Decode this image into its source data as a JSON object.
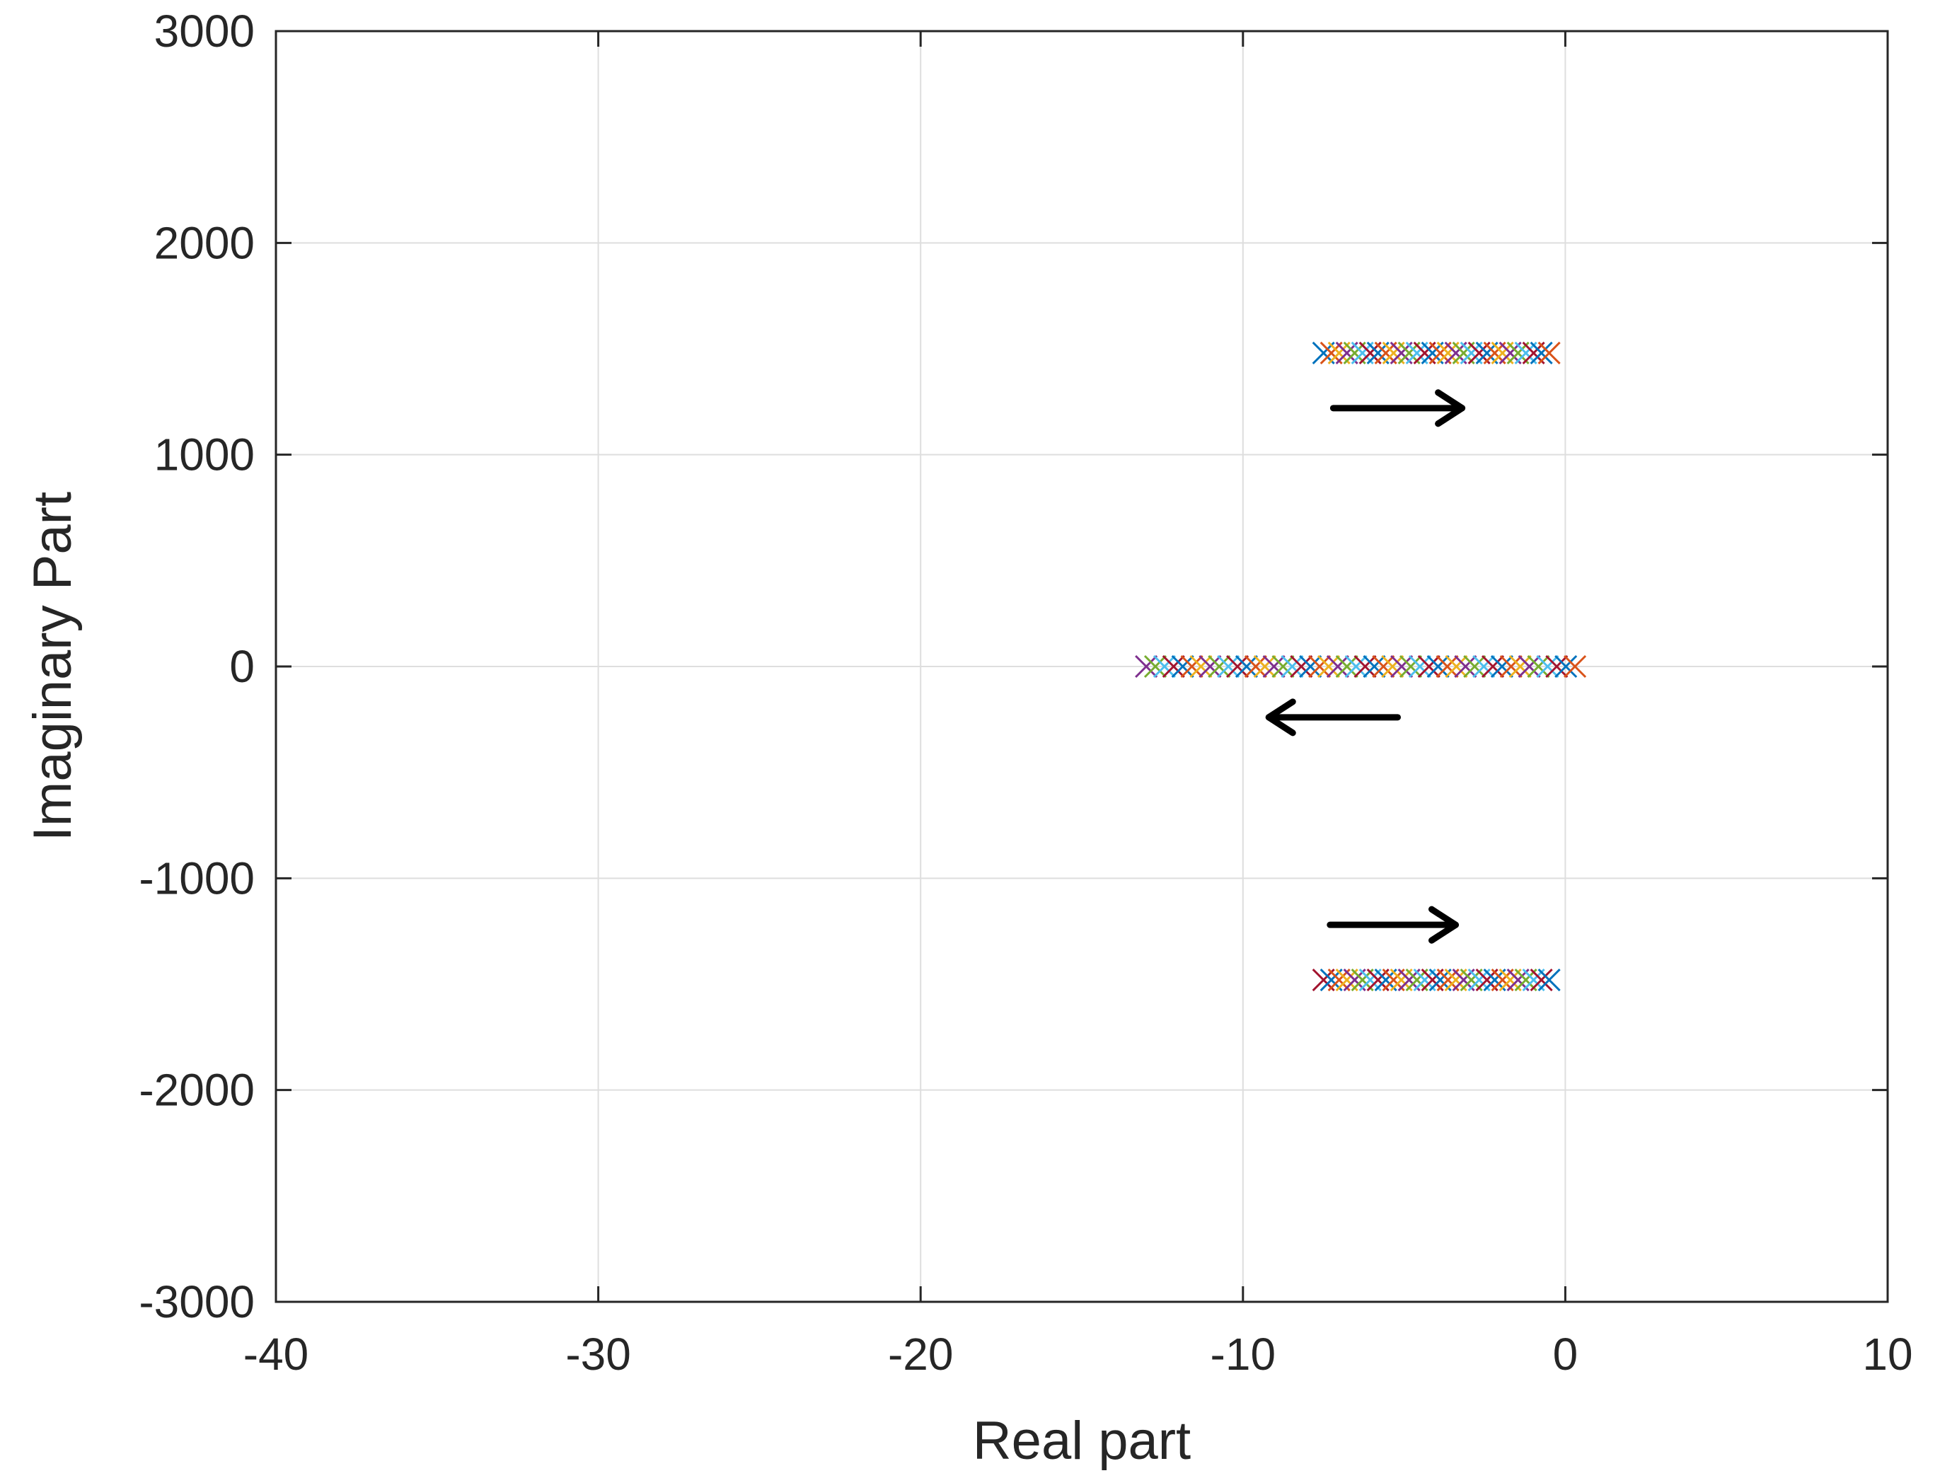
{
  "chart_data": {
    "type": "scatter",
    "title": "",
    "xlabel": "Real part",
    "ylabel": "Imaginary Part",
    "xlim": [
      -40,
      10
    ],
    "ylim": [
      -3000,
      3000
    ],
    "xticks": [
      -40,
      -30,
      -20,
      -10,
      0,
      10
    ],
    "yticks": [
      -3000,
      -2000,
      -1000,
      0,
      1000,
      2000,
      3000
    ],
    "grid": true,
    "legend": "none",
    "marker": "x",
    "marker_colors": [
      "#0072BD",
      "#D95319",
      "#EDB120",
      "#7E2F8E",
      "#77AC30",
      "#4DBEEE",
      "#A2142F"
    ],
    "series": [
      {
        "x_range": [
          -7.5,
          -0.5
        ],
        "y": 1480,
        "count": 30
      },
      {
        "x_range": [
          -13,
          0.3
        ],
        "y": 0,
        "count": 48
      },
      {
        "x_range": [
          -7.5,
          -0.5
        ],
        "y": -1480,
        "count": 30
      }
    ],
    "annotations": [
      {
        "type": "arrow",
        "from": [
          -7.2,
          1220
        ],
        "to": [
          -3.2,
          1220
        ],
        "direction": "right"
      },
      {
        "type": "arrow",
        "from": [
          -5.2,
          -240
        ],
        "to": [
          -9.2,
          -240
        ],
        "direction": "left"
      },
      {
        "type": "arrow",
        "from": [
          -7.3,
          -1220
        ],
        "to": [
          -3.4,
          -1220
        ],
        "direction": "right"
      }
    ]
  }
}
